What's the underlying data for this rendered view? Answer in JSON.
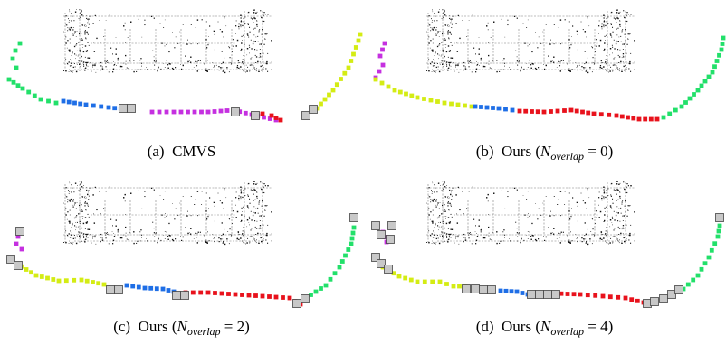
{
  "figure": {
    "panels": [
      {
        "label": "(a)",
        "caption_text": "CMVS",
        "n_overlap": ""
      },
      {
        "label": "(b)",
        "caption_text": "Ours",
        "n_overlap": "0"
      },
      {
        "label": "(c)",
        "caption_text": "Ours",
        "n_overlap": "2"
      },
      {
        "label": "(d)",
        "caption_text": "Ours",
        "n_overlap": "4"
      }
    ],
    "n_symbol": "N",
    "n_subscript": "overlap",
    "colors": {
      "green": "#22e06a",
      "blue": "#1e6ee6",
      "magenta": "#c530e0",
      "red": "#e8121c",
      "yellow": "#d4ec14",
      "overlap_box_fill": "#c8c8c8",
      "overlap_box_stroke": "#444444",
      "points": "#111111"
    }
  }
}
